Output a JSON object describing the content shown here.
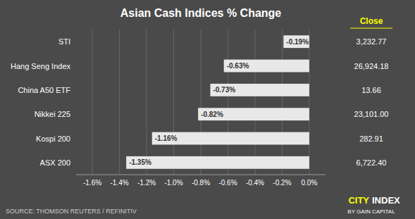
{
  "chart_data": {
    "type": "bar",
    "orientation": "horizontal",
    "title": "Asian Cash Indices % Change",
    "categories": [
      "ASX 200",
      "Kospi 200",
      "Nikkei 225",
      "China A50 ETF",
      "Hang Seng Index",
      "STI"
    ],
    "values": [
      -1.35,
      -1.16,
      -0.82,
      -0.73,
      -0.63,
      -0.19
    ],
    "value_labels": [
      "-1.35%",
      "-1.16%",
      "-0.82%",
      "-0.73%",
      "-0.63%",
      "-0.19%"
    ],
    "data_labels": true,
    "color": "#e8e8e8",
    "xlim": [
      -1.72,
      0.12
    ],
    "xticks": [
      {
        "value": -1.6,
        "label": "-1.6%"
      },
      {
        "value": -1.4,
        "label": "-1.4%"
      },
      {
        "value": -1.2,
        "label": "-1.2%"
      },
      {
        "value": -1.0,
        "label": "-1.0%"
      },
      {
        "value": -0.8,
        "label": "-0.8%"
      },
      {
        "value": -0.6,
        "label": "-0.6%"
      },
      {
        "value": -0.4,
        "label": "-0.4%"
      },
      {
        "value": -0.2,
        "label": "-0.2%"
      },
      {
        "value": 0.0,
        "label": "0.0%"
      }
    ],
    "grid": true,
    "close_column": {
      "header": "Close",
      "values": [
        "6,722.40",
        "282.91",
        "23,101.00",
        "13.66",
        "26,924.18",
        "3,232.77"
      ]
    },
    "source": "SOURCE: THOMSON REUTERS / REFINITIV",
    "logo": {
      "first": "CITY",
      "second": "INDEX",
      "subtitle": "BY GAIN CAPITAL"
    }
  }
}
